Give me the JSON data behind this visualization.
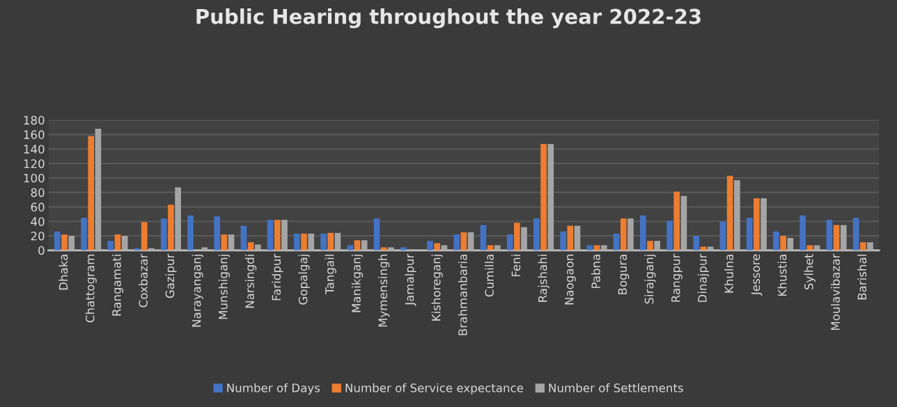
{
  "chart_data": {
    "type": "bar",
    "title": "Public Hearing throughout the year 2022-23",
    "categories": [
      "Dhaka",
      "Chattogram",
      "Rangamati",
      "Coxbazar",
      "Gazipur",
      "Narayanganj",
      "Munshiganj",
      "Narsingdi",
      "Faridpur",
      "Gopalgaj",
      "Tangail",
      "Manikganj",
      "Mymensingh",
      "Jamalpur",
      "Kishoreganj",
      "Brahmanbaria",
      "Cumilla",
      "Feni",
      "Rajshahi",
      "Naogaon",
      "Pabna",
      "Bogura",
      "Sirajganj",
      "Rangpur",
      "Dinajpur",
      "Khulna",
      "Jessore",
      "Khustia",
      "Sylhet",
      "Moulavibazar",
      "Barishal"
    ],
    "series": [
      {
        "name": "Number of Days",
        "color": "#4472c4",
        "values": [
          26,
          45,
          13,
          3,
          44,
          48,
          47,
          34,
          42,
          23,
          23,
          7,
          44,
          4,
          13,
          22,
          35,
          22,
          44,
          26,
          7,
          23,
          48,
          41,
          20,
          40,
          45,
          26,
          48,
          42,
          45
        ]
      },
      {
        "name": "Number of Service expectance",
        "color": "#ed7d31",
        "values": [
          22,
          158,
          22,
          39,
          63,
          0,
          22,
          11,
          42,
          23,
          24,
          14,
          4,
          0,
          10,
          25,
          7,
          38,
          147,
          34,
          7,
          44,
          13,
          81,
          5,
          103,
          72,
          20,
          7,
          35,
          11
        ]
      },
      {
        "name": "Number of Settlements",
        "color": "#a5a5a5",
        "values": [
          20,
          168,
          20,
          3,
          87,
          4,
          22,
          8,
          42,
          23,
          24,
          14,
          4,
          0,
          7,
          25,
          7,
          32,
          147,
          34,
          7,
          44,
          13,
          75,
          5,
          97,
          72,
          17,
          7,
          35,
          11
        ]
      }
    ],
    "ylim": [
      0,
      180
    ],
    "yticks": [
      0,
      20,
      40,
      60,
      80,
      100,
      120,
      140,
      160,
      180
    ],
    "grid": "y",
    "legend": "bottom"
  }
}
